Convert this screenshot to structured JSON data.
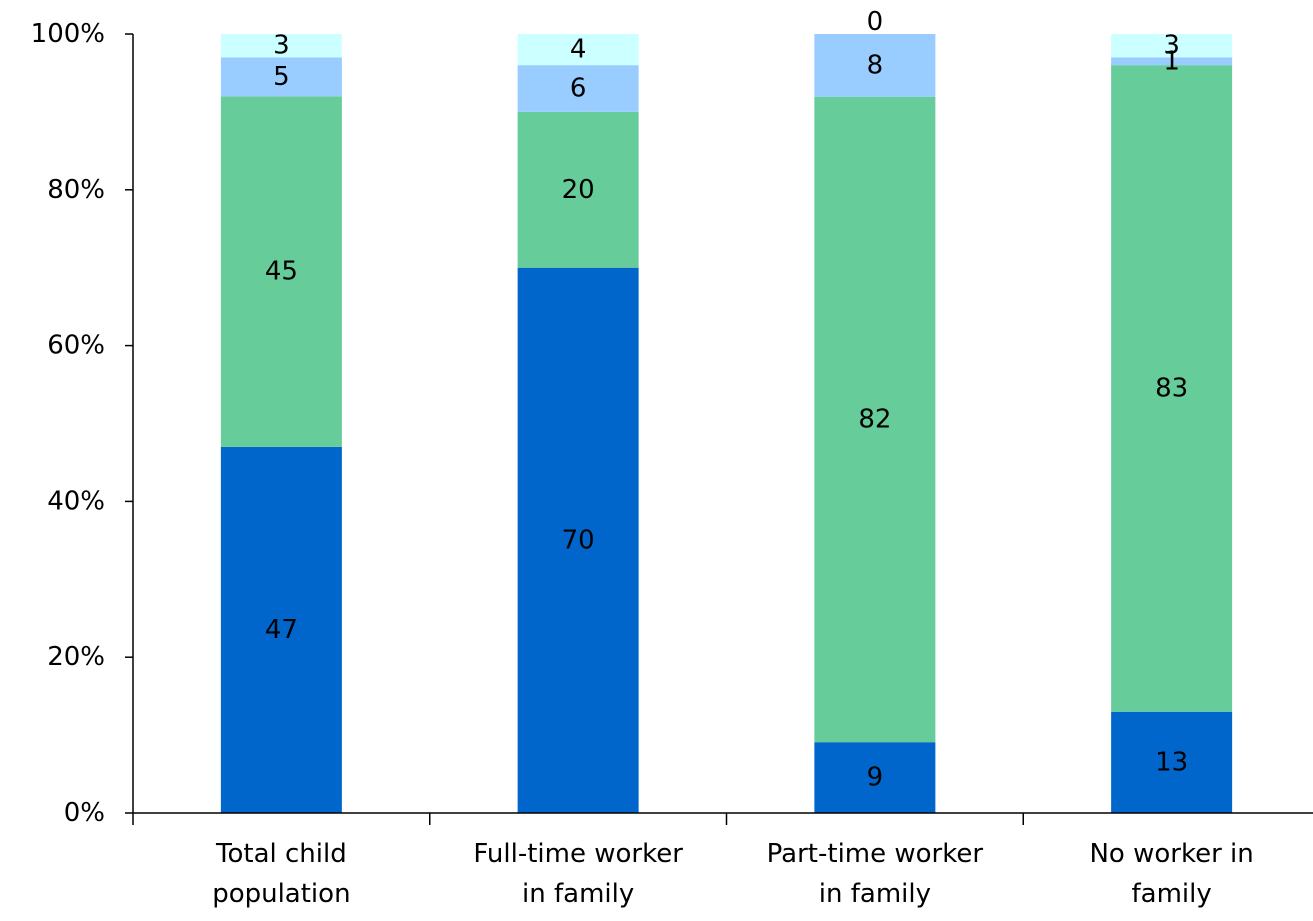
{
  "chart_data": {
    "type": "bar",
    "stacked": true,
    "percent_stacked": true,
    "title": "",
    "xlabel": "",
    "ylabel": "",
    "ylim": [
      0,
      100
    ],
    "y_ticks": [
      "0%",
      "20%",
      "40%",
      "60%",
      "80%",
      "100%"
    ],
    "y_tick_values": [
      0,
      20,
      40,
      60,
      80,
      100
    ],
    "grid": false,
    "legend": "none",
    "categories": [
      [
        "Total child",
        "population"
      ],
      [
        "Full-time worker",
        "in family"
      ],
      [
        "Part-time worker",
        "in family"
      ],
      [
        "No worker in",
        "family"
      ]
    ],
    "series": [
      {
        "color": "#0066cc",
        "values": [
          47,
          70,
          9,
          13
        ]
      },
      {
        "color": "#66cc99",
        "values": [
          45,
          20,
          82,
          83
        ]
      },
      {
        "color": "#99ccff",
        "values": [
          5,
          6,
          8,
          1
        ]
      },
      {
        "color": "#ccffff",
        "values": [
          3,
          4,
          0,
          3
        ]
      }
    ]
  }
}
